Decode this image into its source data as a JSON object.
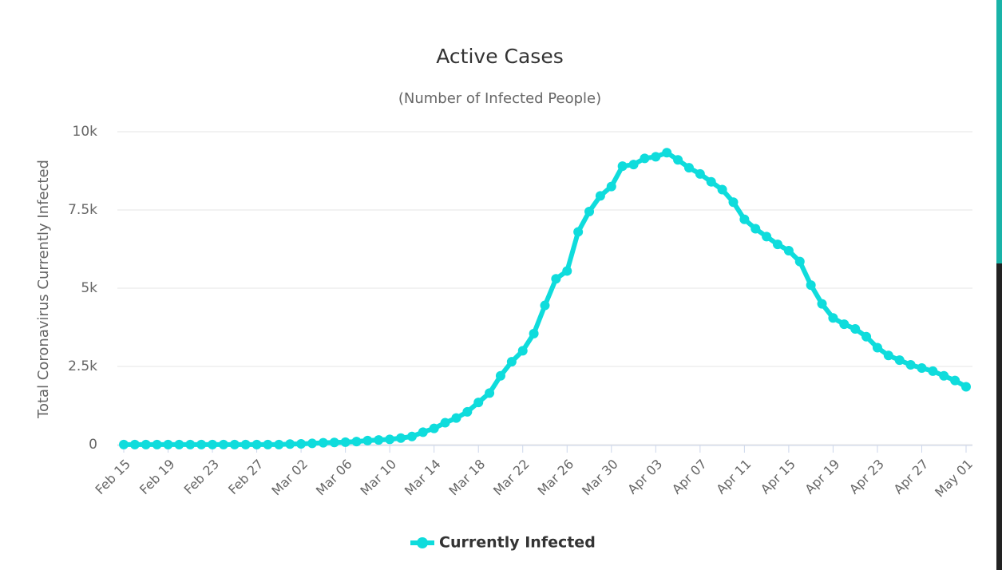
{
  "chart_data": {
    "type": "line",
    "title": "Active Cases",
    "subtitle": "(Number of Infected People)",
    "y_label": "Total Coronavirus Currently Infected",
    "categories": [
      "Feb 15",
      null,
      null,
      null,
      "Feb 19",
      null,
      null,
      null,
      "Feb 23",
      null,
      null,
      null,
      "Feb 27",
      null,
      null,
      null,
      "Mar 02",
      null,
      null,
      null,
      "Mar 06",
      null,
      null,
      null,
      "Mar 10",
      null,
      null,
      null,
      "Mar 14",
      null,
      null,
      null,
      "Mar 18",
      null,
      null,
      null,
      "Mar 22",
      null,
      null,
      null,
      "Mar 26",
      null,
      null,
      null,
      "Mar 30",
      null,
      null,
      null,
      "Apr 03",
      null,
      null,
      null,
      "Apr 07",
      null,
      null,
      null,
      "Apr 11",
      null,
      null,
      null,
      "Apr 15",
      null,
      null,
      null,
      "Apr 19",
      null,
      null,
      null,
      "Apr 23",
      null,
      null,
      null,
      "Apr 27",
      null,
      null,
      null,
      "May 01"
    ],
    "series": [
      {
        "name": "Currently Infected",
        "color": "#0fdcdc",
        "values": [
          3,
          3,
          3,
          3,
          3,
          3,
          3,
          3,
          3,
          3,
          3,
          3,
          3,
          3,
          3,
          20,
          25,
          40,
          60,
          70,
          80,
          100,
          130,
          150,
          170,
          210,
          260,
          400,
          520,
          700,
          850,
          1050,
          1350,
          1650,
          2200,
          2650,
          3000,
          3550,
          4450,
          5300,
          5550,
          6800,
          7450,
          7950,
          8250,
          8900,
          8950,
          9150,
          9200,
          9330,
          9100,
          8850,
          8650,
          8400,
          8150,
          7750,
          7200,
          6900,
          6650,
          6400,
          6200,
          5850,
          5100,
          4500,
          4050,
          3850,
          3700,
          3450,
          3100,
          2850,
          2700,
          2550,
          2450,
          2350,
          2200,
          2050,
          1850
        ]
      }
    ],
    "ylim": [
      0,
      10000
    ],
    "yticks": [
      0,
      {
        "value": 2500,
        "label": "2.5k"
      },
      {
        "value": 5000,
        "label": "5k"
      },
      {
        "value": 7500,
        "label": "7.5k"
      },
      {
        "value": 10000,
        "label": "10k"
      }
    ],
    "grid": true,
    "legend": "bottom"
  }
}
